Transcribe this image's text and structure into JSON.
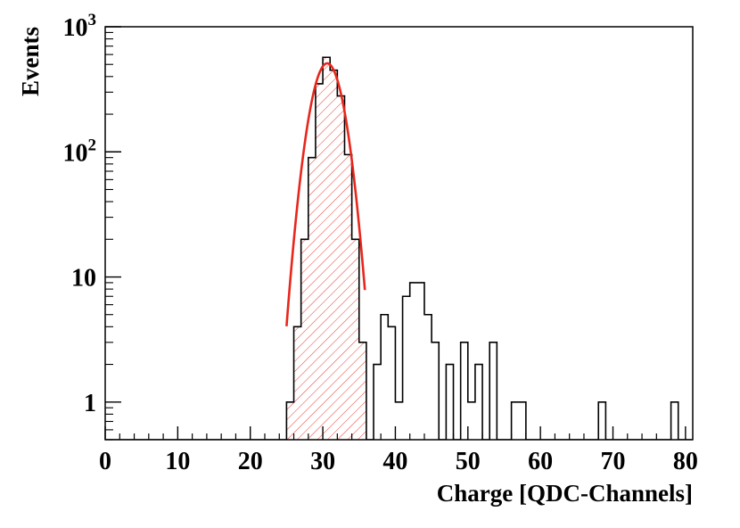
{
  "chart_data": {
    "type": "histogram",
    "title": "",
    "xlabel": "Charge [QDC-Channels]",
    "ylabel": "Events",
    "xlim": [
      0,
      81
    ],
    "ylim": [
      0.5,
      1000
    ],
    "y_scale": "log",
    "grid": false,
    "x_ticks": [
      0,
      10,
      20,
      30,
      40,
      50,
      60,
      70,
      80
    ],
    "y_ticks": [
      {
        "value": 1,
        "label": "1"
      },
      {
        "value": 10,
        "label": "10"
      },
      {
        "value": 100,
        "label": "10",
        "exp": "2"
      },
      {
        "value": 1000,
        "label": "10",
        "exp": "3"
      }
    ],
    "bin_width": 1,
    "bins": [
      {
        "x": 25,
        "y": 1
      },
      {
        "x": 26,
        "y": 4
      },
      {
        "x": 27,
        "y": 20
      },
      {
        "x": 28,
        "y": 90
      },
      {
        "x": 29,
        "y": 350
      },
      {
        "x": 30,
        "y": 570
      },
      {
        "x": 31,
        "y": 450
      },
      {
        "x": 32,
        "y": 280
      },
      {
        "x": 33,
        "y": 95
      },
      {
        "x": 34,
        "y": 20
      },
      {
        "x": 35,
        "y": 3
      },
      {
        "x": 37,
        "y": 2
      },
      {
        "x": 38,
        "y": 5
      },
      {
        "x": 39,
        "y": 4
      },
      {
        "x": 40,
        "y": 1
      },
      {
        "x": 41,
        "y": 7
      },
      {
        "x": 42,
        "y": 9
      },
      {
        "x": 43,
        "y": 9
      },
      {
        "x": 44,
        "y": 5
      },
      {
        "x": 45,
        "y": 3
      },
      {
        "x": 47,
        "y": 2
      },
      {
        "x": 49,
        "y": 3
      },
      {
        "x": 50,
        "y": 1
      },
      {
        "x": 51,
        "y": 2
      },
      {
        "x": 53,
        "y": 3
      },
      {
        "x": 56,
        "y": 1
      },
      {
        "x": 57,
        "y": 1
      },
      {
        "x": 68,
        "y": 1
      },
      {
        "x": 78,
        "y": 1
      }
    ],
    "fit": {
      "type": "gaussian",
      "amplitude": 510,
      "mean": 30.6,
      "sigma": 1.8,
      "x_range": [
        25.0,
        35.8
      ],
      "color": "#e8261b",
      "fill": "hatched"
    },
    "hist_color": "#000000"
  }
}
